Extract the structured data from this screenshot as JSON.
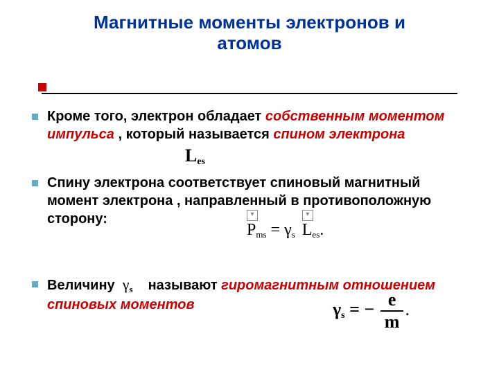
{
  "colors": {
    "title": "#003399",
    "emphasis": "#cc0000",
    "bullet": "#67a8c4",
    "accent": "#cc0000",
    "text": "#000000"
  },
  "title_line1": "Магнитные моменты электронов и",
  "title_line2": "атомов",
  "bullets": {
    "b1": {
      "t1": "Кроме того, электрон обладает ",
      "em1": "собственным моментом импульса ",
      "t2": ", который называется ",
      "em2": "спином электрона"
    },
    "b2": {
      "t1": "Спину электрона  соответствует спиновый магнитный момент электрона , направленный в противоположную сторону:"
    },
    "b3": {
      "t1": "Величину ",
      "t2": " называют ",
      "em1": "гиромагнитным отношением спиновых моментов"
    }
  },
  "formulas": {
    "Les": {
      "base": "L",
      "sub": "es"
    },
    "Pms_eq": {
      "P": "P",
      "P_sub": "ms",
      "eq": " = ",
      "g": "γ",
      "g_sub": "s",
      "L": "L",
      "L_sub": "es",
      "dot": "."
    },
    "gamma_inline": {
      "g": "γ",
      "g_sub": "s"
    },
    "gamma_def": {
      "g": "γ",
      "g_sub": "s",
      "eq": " = − ",
      "num": "e",
      "den": "m",
      "dot": "."
    }
  }
}
